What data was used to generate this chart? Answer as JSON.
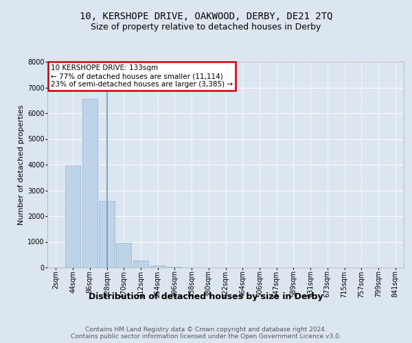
{
  "title": "10, KERSHOPE DRIVE, OAKWOOD, DERBY, DE21 2TQ",
  "subtitle": "Size of property relative to detached houses in Derby",
  "xlabel": "Distribution of detached houses by size in Derby",
  "ylabel": "Number of detached properties",
  "categories": [
    "2sqm",
    "44sqm",
    "86sqm",
    "128sqm",
    "170sqm",
    "212sqm",
    "254sqm",
    "296sqm",
    "338sqm",
    "380sqm",
    "422sqm",
    "464sqm",
    "506sqm",
    "547sqm",
    "589sqm",
    "631sqm",
    "673sqm",
    "715sqm",
    "757sqm",
    "799sqm",
    "841sqm"
  ],
  "values": [
    0,
    3980,
    6560,
    2580,
    950,
    280,
    90,
    30,
    0,
    0,
    0,
    0,
    0,
    0,
    0,
    0,
    0,
    0,
    0,
    0,
    0
  ],
  "bar_color": "#bdd4e8",
  "bar_edge_color": "#9ab8d4",
  "highlight_bar_index": 3,
  "highlight_line_color": "#6699bb",
  "annotation_text_line1": "10 KERSHOPE DRIVE: 133sqm",
  "annotation_text_line2": "← 77% of detached houses are smaller (11,114)",
  "annotation_text_line3": "23% of semi-detached houses are larger (3,385) →",
  "annotation_box_facecolor": "#ffffff",
  "annotation_box_edgecolor": "#cc0000",
  "footer": "Contains HM Land Registry data © Crown copyright and database right 2024.\nContains public sector information licensed under the Open Government Licence v3.0.",
  "ylim": [
    0,
    8000
  ],
  "yticks": [
    0,
    1000,
    2000,
    3000,
    4000,
    5000,
    6000,
    7000,
    8000
  ],
  "bg_color": "#dce6f0",
  "title_fontsize": 10,
  "subtitle_fontsize": 9,
  "xlabel_fontsize": 9,
  "ylabel_fontsize": 8,
  "tick_fontsize": 7,
  "annotation_fontsize": 7.5,
  "footer_fontsize": 6.5
}
